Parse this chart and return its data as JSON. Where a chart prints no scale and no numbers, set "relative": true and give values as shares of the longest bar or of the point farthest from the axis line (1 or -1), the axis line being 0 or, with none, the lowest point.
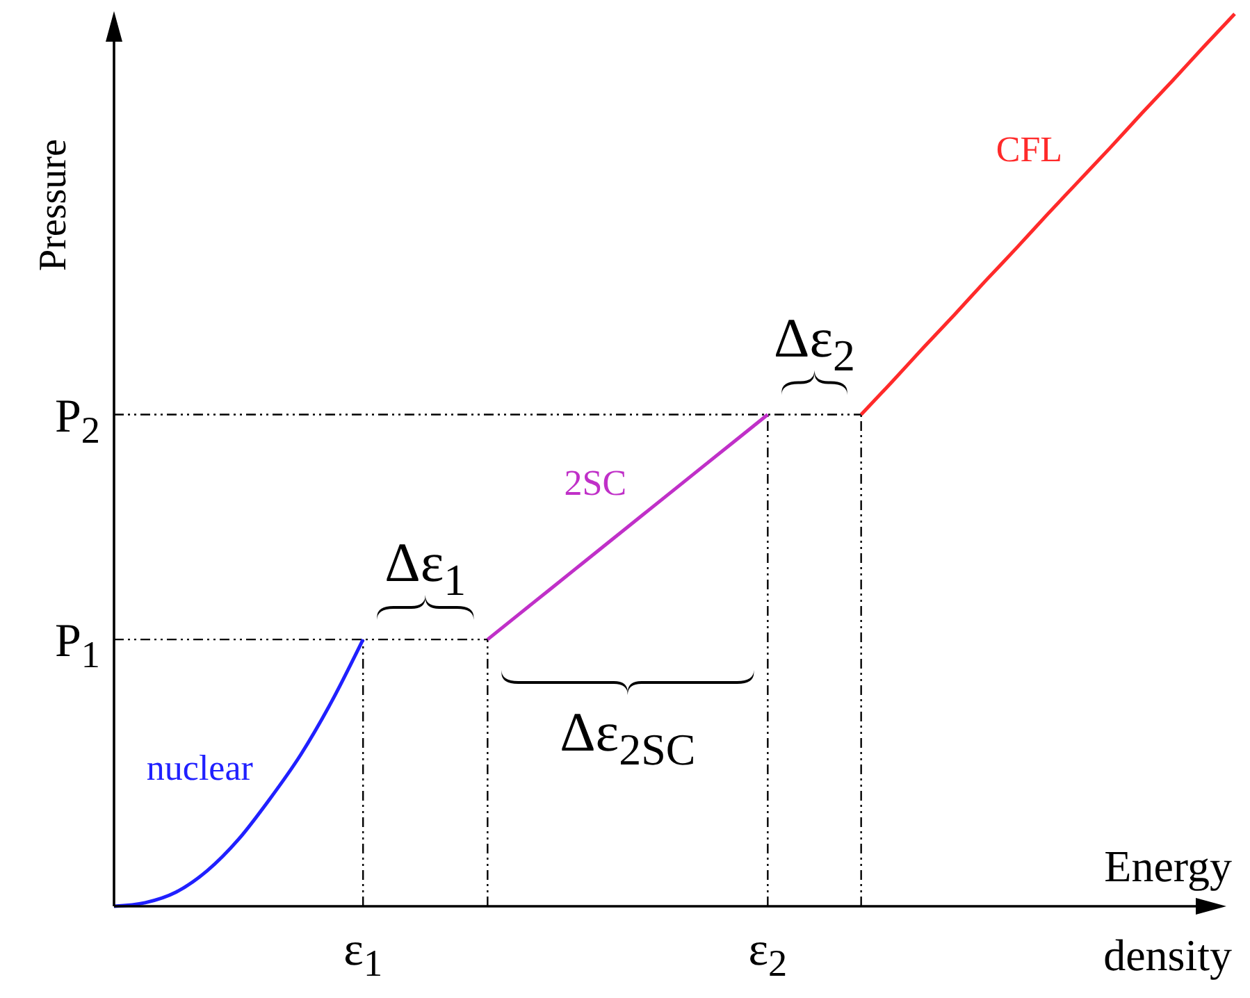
{
  "chart_data": {
    "type": "line",
    "relative": true,
    "xlabel": "Energy density",
    "ylabel": "Pressure",
    "categories": [
      null,
      null,
      null,
      null,
      null,
      null,
      null,
      null,
      "ε$_{1}$",
      null,
      null,
      null,
      null,
      null,
      null,
      null,
      null,
      null,
      null,
      null,
      null,
      "ε$_{2}$",
      null,
      null,
      null,
      null,
      null,
      null,
      null,
      null,
      null,
      null,
      null,
      null,
      null,
      null,
      null
    ],
    "series": [
      {
        "name": "nuclear",
        "color": "#2020ff",
        "values": [
          0,
          0.004,
          0.016,
          0.04,
          0.075,
          0.12,
          0.17,
          0.23,
          0.299,
          null,
          null,
          null,
          null,
          null,
          null,
          null,
          null,
          null,
          null,
          null,
          null,
          null,
          null,
          null,
          null,
          null,
          null,
          null,
          null,
          null,
          null,
          null,
          null,
          null,
          null,
          null,
          null
        ]
      },
      {
        "name": "2SC",
        "color": "#c030c8",
        "values": [
          null,
          null,
          null,
          null,
          null,
          null,
          null,
          null,
          null,
          null,
          null,
          null,
          0.299,
          0.327,
          0.355,
          0.383,
          0.411,
          0.439,
          0.467,
          0.495,
          0.523,
          0.551,
          null,
          null,
          null,
          null,
          null,
          null,
          null,
          null,
          null,
          null,
          null,
          null,
          null,
          null,
          null
        ]
      },
      {
        "name": "CFL",
        "color": "#ff2a2a",
        "values": [
          null,
          null,
          null,
          null,
          null,
          null,
          null,
          null,
          null,
          null,
          null,
          null,
          null,
          null,
          null,
          null,
          null,
          null,
          null,
          null,
          null,
          null,
          null,
          null,
          0.551,
          0.588,
          0.626,
          0.663,
          0.701,
          0.738,
          0.776,
          0.813,
          0.85,
          0.888,
          0.925,
          0.963,
          1
        ]
      }
    ],
    "ref_lines": [
      {
        "axis": "y",
        "value": 0.299,
        "label": "P$_{1}$",
        "line_style": "dashed"
      },
      {
        "axis": "y",
        "value": 0.551,
        "label": "P$_{2}$",
        "line_style": "dashed"
      }
    ],
    "annotations": [
      "Δε$_{1}$",
      "Δε$_{2SC}$",
      "Δε$_{2}$"
    ],
    "line_style": "solid",
    "marker": "none",
    "legend": false
  }
}
